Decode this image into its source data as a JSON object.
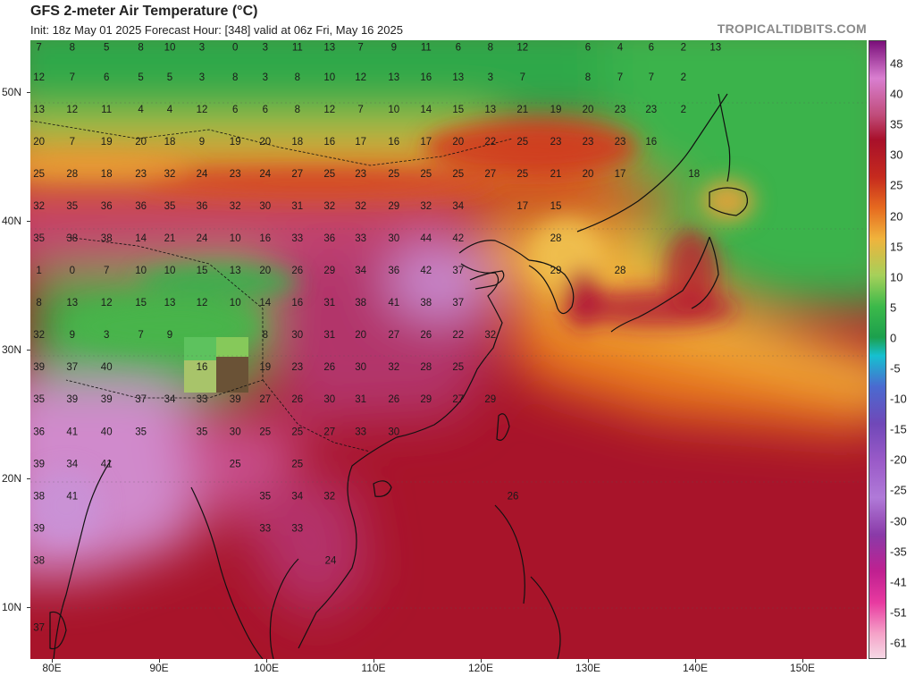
{
  "title": "GFS 2-meter Air Temperature (°C)",
  "subtitle": "Init: 18z May 01 2025   Forecast Hour: [348]   valid at 06z Fri, May 16 2025",
  "brand": "TROPICALTIDBITS.COM",
  "map": {
    "lon_range": [
      78,
      156
    ],
    "lat_range": [
      6,
      54
    ],
    "lat_labels": [
      "10N",
      "20N",
      "30N",
      "40N",
      "50N"
    ],
    "lat_values": [
      10,
      20,
      30,
      40,
      50
    ],
    "lon_labels": [
      "80E",
      "90E",
      "100E",
      "110E",
      "120E",
      "130E",
      "140E",
      "150E"
    ],
    "lon_values": [
      80,
      90,
      100,
      110,
      120,
      130,
      140,
      150
    ]
  },
  "colorbar": {
    "labels": [
      "48",
      "40",
      "35",
      "30",
      "25",
      "20",
      "15",
      "10",
      "5",
      "0",
      "-5",
      "-10",
      "-15",
      "-20",
      "-25",
      "-30",
      "-35",
      "-41",
      "-51",
      "-61"
    ],
    "colors": [
      "#7a0f7a",
      "#d97fd0",
      "#c04c7a",
      "#a8102a",
      "#c52a1e",
      "#e66a1f",
      "#f0b33c",
      "#a5d05a",
      "#3cb94a",
      "#1ca04d",
      "#16c0d0",
      "#4a6ad0",
      "#7048b8",
      "#9a5ac8",
      "#b07ad8",
      "#8a3aa8",
      "#c02090",
      "#e83aa0",
      "#f5a2c8",
      "#f5d8e5"
    ]
  },
  "temperature_labels": [
    {
      "lon": 78.8,
      "lat": 53.4,
      "t": "7"
    },
    {
      "lon": 81.9,
      "lat": 53.4,
      "t": "8"
    },
    {
      "lon": 85.1,
      "lat": 53.4,
      "t": "5"
    },
    {
      "lon": 88.3,
      "lat": 53.4,
      "t": "8"
    },
    {
      "lon": 91.0,
      "lat": 53.4,
      "t": "10"
    },
    {
      "lon": 94.0,
      "lat": 53.4,
      "t": "3"
    },
    {
      "lon": 97.1,
      "lat": 53.4,
      "t": "0"
    },
    {
      "lon": 99.9,
      "lat": 53.4,
      "t": "3"
    },
    {
      "lon": 102.9,
      "lat": 53.4,
      "t": "11"
    },
    {
      "lon": 105.9,
      "lat": 53.4,
      "t": "13"
    },
    {
      "lon": 108.8,
      "lat": 53.4,
      "t": "7"
    },
    {
      "lon": 111.9,
      "lat": 53.4,
      "t": "9"
    },
    {
      "lon": 114.9,
      "lat": 53.4,
      "t": "11"
    },
    {
      "lon": 117.9,
      "lat": 53.4,
      "t": "6"
    },
    {
      "lon": 120.9,
      "lat": 53.4,
      "t": "8"
    },
    {
      "lon": 123.9,
      "lat": 53.4,
      "t": "12"
    },
    {
      "lon": 130.0,
      "lat": 53.4,
      "t": "6"
    },
    {
      "lon": 133.0,
      "lat": 53.4,
      "t": "4"
    },
    {
      "lon": 135.9,
      "lat": 53.4,
      "t": "6"
    },
    {
      "lon": 138.9,
      "lat": 53.4,
      "t": "2"
    },
    {
      "lon": 141.9,
      "lat": 53.4,
      "t": "13"
    },
    {
      "lon": 78.8,
      "lat": 51.1,
      "t": "12"
    },
    {
      "lon": 81.9,
      "lat": 51.1,
      "t": "7"
    },
    {
      "lon": 85.1,
      "lat": 51.1,
      "t": "6"
    },
    {
      "lon": 88.3,
      "lat": 51.1,
      "t": "5"
    },
    {
      "lon": 91.0,
      "lat": 51.1,
      "t": "5"
    },
    {
      "lon": 94.0,
      "lat": 51.1,
      "t": "3"
    },
    {
      "lon": 97.1,
      "lat": 51.1,
      "t": "8"
    },
    {
      "lon": 99.9,
      "lat": 51.1,
      "t": "3"
    },
    {
      "lon": 102.9,
      "lat": 51.1,
      "t": "8"
    },
    {
      "lon": 105.9,
      "lat": 51.1,
      "t": "10"
    },
    {
      "lon": 108.8,
      "lat": 51.1,
      "t": "12"
    },
    {
      "lon": 111.9,
      "lat": 51.1,
      "t": "13"
    },
    {
      "lon": 114.9,
      "lat": 51.1,
      "t": "16"
    },
    {
      "lon": 117.9,
      "lat": 51.1,
      "t": "13"
    },
    {
      "lon": 120.9,
      "lat": 51.1,
      "t": "3"
    },
    {
      "lon": 123.9,
      "lat": 51.1,
      "t": "7"
    },
    {
      "lon": 130.0,
      "lat": 51.1,
      "t": "8"
    },
    {
      "lon": 133.0,
      "lat": 51.1,
      "t": "7"
    },
    {
      "lon": 135.9,
      "lat": 51.1,
      "t": "7"
    },
    {
      "lon": 138.9,
      "lat": 51.1,
      "t": "2"
    },
    {
      "lon": 78.8,
      "lat": 48.6,
      "t": "13"
    },
    {
      "lon": 81.9,
      "lat": 48.6,
      "t": "12"
    },
    {
      "lon": 85.1,
      "lat": 48.6,
      "t": "11"
    },
    {
      "lon": 88.3,
      "lat": 48.6,
      "t": "4"
    },
    {
      "lon": 91.0,
      "lat": 48.6,
      "t": "4"
    },
    {
      "lon": 94.0,
      "lat": 48.6,
      "t": "12"
    },
    {
      "lon": 97.1,
      "lat": 48.6,
      "t": "6"
    },
    {
      "lon": 99.9,
      "lat": 48.6,
      "t": "6"
    },
    {
      "lon": 102.9,
      "lat": 48.6,
      "t": "8"
    },
    {
      "lon": 105.9,
      "lat": 48.6,
      "t": "12"
    },
    {
      "lon": 108.8,
      "lat": 48.6,
      "t": "7"
    },
    {
      "lon": 111.9,
      "lat": 48.6,
      "t": "10"
    },
    {
      "lon": 114.9,
      "lat": 48.6,
      "t": "14"
    },
    {
      "lon": 117.9,
      "lat": 48.6,
      "t": "15"
    },
    {
      "lon": 120.9,
      "lat": 48.6,
      "t": "13"
    },
    {
      "lon": 123.9,
      "lat": 48.6,
      "t": "21"
    },
    {
      "lon": 127.0,
      "lat": 48.6,
      "t": "19"
    },
    {
      "lon": 130.0,
      "lat": 48.6,
      "t": "20"
    },
    {
      "lon": 133.0,
      "lat": 48.6,
      "t": "23"
    },
    {
      "lon": 135.9,
      "lat": 48.6,
      "t": "23"
    },
    {
      "lon": 138.9,
      "lat": 48.6,
      "t": "2"
    },
    {
      "lon": 78.8,
      "lat": 46.1,
      "t": "20"
    },
    {
      "lon": 81.9,
      "lat": 46.1,
      "t": "7"
    },
    {
      "lon": 85.1,
      "lat": 46.1,
      "t": "19"
    },
    {
      "lon": 88.3,
      "lat": 46.1,
      "t": "20"
    },
    {
      "lon": 91.0,
      "lat": 46.1,
      "t": "18"
    },
    {
      "lon": 94.0,
      "lat": 46.1,
      "t": "9"
    },
    {
      "lon": 97.1,
      "lat": 46.1,
      "t": "19"
    },
    {
      "lon": 99.9,
      "lat": 46.1,
      "t": "20"
    },
    {
      "lon": 102.9,
      "lat": 46.1,
      "t": "18"
    },
    {
      "lon": 105.9,
      "lat": 46.1,
      "t": "16"
    },
    {
      "lon": 108.8,
      "lat": 46.1,
      "t": "17"
    },
    {
      "lon": 111.9,
      "lat": 46.1,
      "t": "16"
    },
    {
      "lon": 114.9,
      "lat": 46.1,
      "t": "17"
    },
    {
      "lon": 117.9,
      "lat": 46.1,
      "t": "20"
    },
    {
      "lon": 120.9,
      "lat": 46.1,
      "t": "22"
    },
    {
      "lon": 123.9,
      "lat": 46.1,
      "t": "25"
    },
    {
      "lon": 127.0,
      "lat": 46.1,
      "t": "23"
    },
    {
      "lon": 130.0,
      "lat": 46.1,
      "t": "23"
    },
    {
      "lon": 133.0,
      "lat": 46.1,
      "t": "23"
    },
    {
      "lon": 135.9,
      "lat": 46.1,
      "t": "16"
    },
    {
      "lon": 78.8,
      "lat": 43.6,
      "t": "25"
    },
    {
      "lon": 81.9,
      "lat": 43.6,
      "t": "28"
    },
    {
      "lon": 85.1,
      "lat": 43.6,
      "t": "18"
    },
    {
      "lon": 88.3,
      "lat": 43.6,
      "t": "23"
    },
    {
      "lon": 91.0,
      "lat": 43.6,
      "t": "32"
    },
    {
      "lon": 94.0,
      "lat": 43.6,
      "t": "24"
    },
    {
      "lon": 97.1,
      "lat": 43.6,
      "t": "23"
    },
    {
      "lon": 99.9,
      "lat": 43.6,
      "t": "24"
    },
    {
      "lon": 102.9,
      "lat": 43.6,
      "t": "27"
    },
    {
      "lon": 105.9,
      "lat": 43.6,
      "t": "25"
    },
    {
      "lon": 108.8,
      "lat": 43.6,
      "t": "23"
    },
    {
      "lon": 111.9,
      "lat": 43.6,
      "t": "25"
    },
    {
      "lon": 114.9,
      "lat": 43.6,
      "t": "25"
    },
    {
      "lon": 117.9,
      "lat": 43.6,
      "t": "25"
    },
    {
      "lon": 120.9,
      "lat": 43.6,
      "t": "27"
    },
    {
      "lon": 123.9,
      "lat": 43.6,
      "t": "25"
    },
    {
      "lon": 127.0,
      "lat": 43.6,
      "t": "21"
    },
    {
      "lon": 130.0,
      "lat": 43.6,
      "t": "20"
    },
    {
      "lon": 133.0,
      "lat": 43.6,
      "t": "17"
    },
    {
      "lon": 139.9,
      "lat": 43.6,
      "t": "18"
    },
    {
      "lon": 78.8,
      "lat": 41.1,
      "t": "32"
    },
    {
      "lon": 81.9,
      "lat": 41.1,
      "t": "35"
    },
    {
      "lon": 85.1,
      "lat": 41.1,
      "t": "36"
    },
    {
      "lon": 88.3,
      "lat": 41.1,
      "t": "36"
    },
    {
      "lon": 91.0,
      "lat": 41.1,
      "t": "35"
    },
    {
      "lon": 94.0,
      "lat": 41.1,
      "t": "36"
    },
    {
      "lon": 97.1,
      "lat": 41.1,
      "t": "32"
    },
    {
      "lon": 99.9,
      "lat": 41.1,
      "t": "30"
    },
    {
      "lon": 102.9,
      "lat": 41.1,
      "t": "31"
    },
    {
      "lon": 105.9,
      "lat": 41.1,
      "t": "32"
    },
    {
      "lon": 108.8,
      "lat": 41.1,
      "t": "32"
    },
    {
      "lon": 111.9,
      "lat": 41.1,
      "t": "29"
    },
    {
      "lon": 114.9,
      "lat": 41.1,
      "t": "32"
    },
    {
      "lon": 117.9,
      "lat": 41.1,
      "t": "34"
    },
    {
      "lon": 123.9,
      "lat": 41.1,
      "t": "17"
    },
    {
      "lon": 127.0,
      "lat": 41.1,
      "t": "15"
    },
    {
      "lon": 78.8,
      "lat": 38.6,
      "t": "35"
    },
    {
      "lon": 81.9,
      "lat": 38.6,
      "t": "38"
    },
    {
      "lon": 85.1,
      "lat": 38.6,
      "t": "38"
    },
    {
      "lon": 88.3,
      "lat": 38.6,
      "t": "14"
    },
    {
      "lon": 91.0,
      "lat": 38.6,
      "t": "21"
    },
    {
      "lon": 94.0,
      "lat": 38.6,
      "t": "24"
    },
    {
      "lon": 97.1,
      "lat": 38.6,
      "t": "10"
    },
    {
      "lon": 99.9,
      "lat": 38.6,
      "t": "16"
    },
    {
      "lon": 102.9,
      "lat": 38.6,
      "t": "33"
    },
    {
      "lon": 105.9,
      "lat": 38.6,
      "t": "36"
    },
    {
      "lon": 108.8,
      "lat": 38.6,
      "t": "33"
    },
    {
      "lon": 111.9,
      "lat": 38.6,
      "t": "30"
    },
    {
      "lon": 114.9,
      "lat": 38.6,
      "t": "44"
    },
    {
      "lon": 117.9,
      "lat": 38.6,
      "t": "42"
    },
    {
      "lon": 127.0,
      "lat": 38.6,
      "t": "28"
    },
    {
      "lon": 78.8,
      "lat": 36.1,
      "t": "1"
    },
    {
      "lon": 81.9,
      "lat": 36.1,
      "t": "0"
    },
    {
      "lon": 85.1,
      "lat": 36.1,
      "t": "7"
    },
    {
      "lon": 88.3,
      "lat": 36.1,
      "t": "10"
    },
    {
      "lon": 91.0,
      "lat": 36.1,
      "t": "10"
    },
    {
      "lon": 94.0,
      "lat": 36.1,
      "t": "15"
    },
    {
      "lon": 97.1,
      "lat": 36.1,
      "t": "13"
    },
    {
      "lon": 99.9,
      "lat": 36.1,
      "t": "20"
    },
    {
      "lon": 102.9,
      "lat": 36.1,
      "t": "26"
    },
    {
      "lon": 105.9,
      "lat": 36.1,
      "t": "29"
    },
    {
      "lon": 108.8,
      "lat": 36.1,
      "t": "34"
    },
    {
      "lon": 111.9,
      "lat": 36.1,
      "t": "36"
    },
    {
      "lon": 114.9,
      "lat": 36.1,
      "t": "42"
    },
    {
      "lon": 117.9,
      "lat": 36.1,
      "t": "37"
    },
    {
      "lon": 127.0,
      "lat": 36.1,
      "t": "29"
    },
    {
      "lon": 133.0,
      "lat": 36.1,
      "t": "28"
    },
    {
      "lon": 78.8,
      "lat": 33.6,
      "t": "8"
    },
    {
      "lon": 81.9,
      "lat": 33.6,
      "t": "13"
    },
    {
      "lon": 85.1,
      "lat": 33.6,
      "t": "12"
    },
    {
      "lon": 88.3,
      "lat": 33.6,
      "t": "15"
    },
    {
      "lon": 91.0,
      "lat": 33.6,
      "t": "13"
    },
    {
      "lon": 94.0,
      "lat": 33.6,
      "t": "12"
    },
    {
      "lon": 97.1,
      "lat": 33.6,
      "t": "10"
    },
    {
      "lon": 99.9,
      "lat": 33.6,
      "t": "14"
    },
    {
      "lon": 102.9,
      "lat": 33.6,
      "t": "16"
    },
    {
      "lon": 105.9,
      "lat": 33.6,
      "t": "31"
    },
    {
      "lon": 108.8,
      "lat": 33.6,
      "t": "38"
    },
    {
      "lon": 111.9,
      "lat": 33.6,
      "t": "41"
    },
    {
      "lon": 114.9,
      "lat": 33.6,
      "t": "38"
    },
    {
      "lon": 117.9,
      "lat": 33.6,
      "t": "37"
    },
    {
      "lon": 78.8,
      "lat": 31.1,
      "t": "32"
    },
    {
      "lon": 81.9,
      "lat": 31.1,
      "t": "9"
    },
    {
      "lon": 85.1,
      "lat": 31.1,
      "t": "3"
    },
    {
      "lon": 88.3,
      "lat": 31.1,
      "t": "7"
    },
    {
      "lon": 91.0,
      "lat": 31.1,
      "t": "9"
    },
    {
      "lon": 99.9,
      "lat": 31.1,
      "t": "8"
    },
    {
      "lon": 102.9,
      "lat": 31.1,
      "t": "30"
    },
    {
      "lon": 105.9,
      "lat": 31.1,
      "t": "31"
    },
    {
      "lon": 108.8,
      "lat": 31.1,
      "t": "20"
    },
    {
      "lon": 111.9,
      "lat": 31.1,
      "t": "27"
    },
    {
      "lon": 114.9,
      "lat": 31.1,
      "t": "26"
    },
    {
      "lon": 117.9,
      "lat": 31.1,
      "t": "22"
    },
    {
      "lon": 120.9,
      "lat": 31.1,
      "t": "32"
    },
    {
      "lon": 78.8,
      "lat": 28.6,
      "t": "39"
    },
    {
      "lon": 81.9,
      "lat": 28.6,
      "t": "37"
    },
    {
      "lon": 85.1,
      "lat": 28.6,
      "t": "40"
    },
    {
      "lon": 94.0,
      "lat": 28.6,
      "t": "16"
    },
    {
      "lon": 99.9,
      "lat": 28.6,
      "t": "19"
    },
    {
      "lon": 102.9,
      "lat": 28.6,
      "t": "23"
    },
    {
      "lon": 105.9,
      "lat": 28.6,
      "t": "26"
    },
    {
      "lon": 108.8,
      "lat": 28.6,
      "t": "30"
    },
    {
      "lon": 111.9,
      "lat": 28.6,
      "t": "32"
    },
    {
      "lon": 114.9,
      "lat": 28.6,
      "t": "28"
    },
    {
      "lon": 117.9,
      "lat": 28.6,
      "t": "25"
    },
    {
      "lon": 78.8,
      "lat": 26.1,
      "t": "35"
    },
    {
      "lon": 81.9,
      "lat": 26.1,
      "t": "39"
    },
    {
      "lon": 85.1,
      "lat": 26.1,
      "t": "39"
    },
    {
      "lon": 88.3,
      "lat": 26.1,
      "t": "37"
    },
    {
      "lon": 91.0,
      "lat": 26.1,
      "t": "34"
    },
    {
      "lon": 94.0,
      "lat": 26.1,
      "t": "33"
    },
    {
      "lon": 97.1,
      "lat": 26.1,
      "t": "39"
    },
    {
      "lon": 99.9,
      "lat": 26.1,
      "t": "27"
    },
    {
      "lon": 102.9,
      "lat": 26.1,
      "t": "26"
    },
    {
      "lon": 105.9,
      "lat": 26.1,
      "t": "30"
    },
    {
      "lon": 108.8,
      "lat": 26.1,
      "t": "31"
    },
    {
      "lon": 111.9,
      "lat": 26.1,
      "t": "26"
    },
    {
      "lon": 114.9,
      "lat": 26.1,
      "t": "29"
    },
    {
      "lon": 117.9,
      "lat": 26.1,
      "t": "27"
    },
    {
      "lon": 120.9,
      "lat": 26.1,
      "t": "29"
    },
    {
      "lon": 78.8,
      "lat": 23.6,
      "t": "36"
    },
    {
      "lon": 81.9,
      "lat": 23.6,
      "t": "41"
    },
    {
      "lon": 85.1,
      "lat": 23.6,
      "t": "40"
    },
    {
      "lon": 88.3,
      "lat": 23.6,
      "t": "35"
    },
    {
      "lon": 94.0,
      "lat": 23.6,
      "t": "35"
    },
    {
      "lon": 97.1,
      "lat": 23.6,
      "t": "30"
    },
    {
      "lon": 99.9,
      "lat": 23.6,
      "t": "25"
    },
    {
      "lon": 102.9,
      "lat": 23.6,
      "t": "25"
    },
    {
      "lon": 105.9,
      "lat": 23.6,
      "t": "27"
    },
    {
      "lon": 108.8,
      "lat": 23.6,
      "t": "33"
    },
    {
      "lon": 111.9,
      "lat": 23.6,
      "t": "30"
    },
    {
      "lon": 78.8,
      "lat": 21.1,
      "t": "39"
    },
    {
      "lon": 81.9,
      "lat": 21.1,
      "t": "34"
    },
    {
      "lon": 85.1,
      "lat": 21.1,
      "t": "41"
    },
    {
      "lon": 97.1,
      "lat": 21.1,
      "t": "25"
    },
    {
      "lon": 102.9,
      "lat": 21.1,
      "t": "25"
    },
    {
      "lon": 78.8,
      "lat": 18.6,
      "t": "38"
    },
    {
      "lon": 81.9,
      "lat": 18.6,
      "t": "41"
    },
    {
      "lon": 99.9,
      "lat": 18.6,
      "t": "35"
    },
    {
      "lon": 102.9,
      "lat": 18.6,
      "t": "34"
    },
    {
      "lon": 105.9,
      "lat": 18.6,
      "t": "32"
    },
    {
      "lon": 123.0,
      "lat": 18.6,
      "t": "26"
    },
    {
      "lon": 78.8,
      "lat": 16.1,
      "t": "39"
    },
    {
      "lon": 99.9,
      "lat": 16.1,
      "t": "33"
    },
    {
      "lon": 102.9,
      "lat": 16.1,
      "t": "33"
    },
    {
      "lon": 78.8,
      "lat": 13.6,
      "t": "38"
    },
    {
      "lon": 106.0,
      "lat": 13.6,
      "t": "24"
    },
    {
      "lon": 78.8,
      "lat": 8.4,
      "t": "37"
    }
  ]
}
